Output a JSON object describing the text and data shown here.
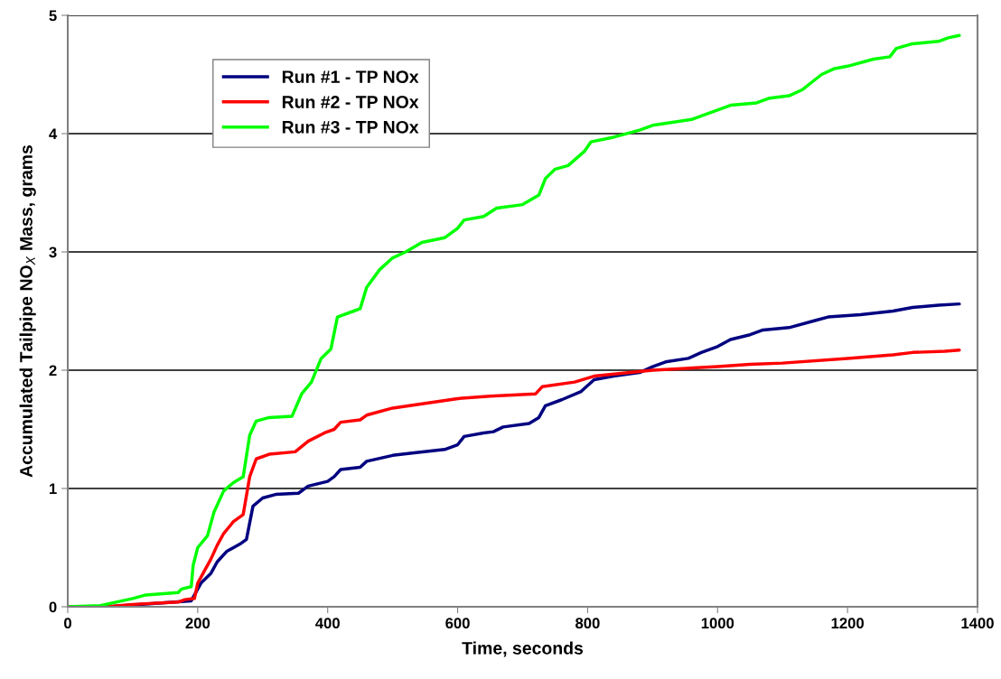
{
  "chart_data": {
    "type": "line",
    "xlabel": "Time, seconds",
    "ylabel": "Accumulated Tailpipe NO$_{X}$ Mass, grams",
    "xlim": [
      0,
      1400
    ],
    "xticks": [
      0,
      200,
      400,
      600,
      800,
      1000,
      1200,
      1400
    ],
    "ylim": [
      0,
      5
    ],
    "yticks": [
      0,
      1,
      2,
      3,
      4,
      5
    ],
    "grid": "y",
    "legend": "top left",
    "marker": "none",
    "line_style": "solid",
    "series": [
      {
        "name": "Run #1 - TP NOx",
        "color": "#000080",
        "x": [
          0,
          60,
          190,
          195,
          205,
          220,
          230,
          245,
          265,
          275,
          285,
          300,
          320,
          355,
          370,
          400,
          410,
          420,
          450,
          460,
          500,
          530,
          580,
          600,
          610,
          640,
          655,
          670,
          710,
          725,
          735,
          760,
          790,
          810,
          840,
          880,
          900,
          920,
          955,
          975,
          1000,
          1020,
          1050,
          1070,
          1110,
          1150,
          1170,
          1220,
          1270,
          1300,
          1340,
          1372
        ],
        "values": [
          0,
          0,
          0.05,
          0.1,
          0.2,
          0.28,
          0.38,
          0.47,
          0.53,
          0.57,
          0.85,
          0.92,
          0.95,
          0.96,
          1.02,
          1.06,
          1.1,
          1.16,
          1.18,
          1.23,
          1.28,
          1.3,
          1.33,
          1.37,
          1.44,
          1.47,
          1.48,
          1.52,
          1.55,
          1.6,
          1.7,
          1.75,
          1.82,
          1.92,
          1.95,
          1.98,
          2.03,
          2.07,
          2.1,
          2.15,
          2.2,
          2.26,
          2.3,
          2.34,
          2.36,
          2.42,
          2.45,
          2.47,
          2.5,
          2.53,
          2.55,
          2.56
        ]
      },
      {
        "name": "Run #2 - TP NOx",
        "color": "#ff0000",
        "x": [
          0,
          60,
          100,
          170,
          180,
          195,
          200,
          210,
          220,
          230,
          240,
          255,
          270,
          280,
          290,
          310,
          350,
          370,
          395,
          410,
          420,
          450,
          460,
          500,
          550,
          600,
          650,
          720,
          730,
          780,
          810,
          900,
          1000,
          1050,
          1100,
          1200,
          1270,
          1300,
          1350,
          1372
        ],
        "values": [
          0,
          0,
          0.02,
          0.04,
          0.06,
          0.07,
          0.2,
          0.3,
          0.4,
          0.52,
          0.62,
          0.72,
          0.78,
          1.1,
          1.25,
          1.29,
          1.31,
          1.4,
          1.47,
          1.5,
          1.56,
          1.58,
          1.62,
          1.68,
          1.72,
          1.76,
          1.78,
          1.8,
          1.86,
          1.9,
          1.95,
          2.0,
          2.03,
          2.05,
          2.06,
          2.1,
          2.13,
          2.15,
          2.16,
          2.17
        ]
      },
      {
        "name": "Run #3 - TP NOx",
        "color": "#00ff00",
        "x": [
          0,
          50,
          100,
          120,
          170,
          175,
          190,
          193,
          200,
          215,
          225,
          240,
          255,
          270,
          280,
          290,
          310,
          345,
          360,
          375,
          390,
          405,
          415,
          440,
          450,
          460,
          480,
          500,
          520,
          545,
          580,
          600,
          610,
          640,
          660,
          700,
          725,
          735,
          750,
          770,
          795,
          805,
          840,
          880,
          900,
          960,
          975,
          1000,
          1020,
          1060,
          1080,
          1110,
          1130,
          1160,
          1180,
          1200,
          1240,
          1265,
          1275,
          1300,
          1340,
          1355,
          1372
        ],
        "values": [
          0,
          0.01,
          0.07,
          0.1,
          0.12,
          0.15,
          0.17,
          0.35,
          0.5,
          0.6,
          0.8,
          0.98,
          1.05,
          1.1,
          1.45,
          1.57,
          1.6,
          1.61,
          1.8,
          1.9,
          2.1,
          2.18,
          2.45,
          2.5,
          2.52,
          2.7,
          2.85,
          2.95,
          3.0,
          3.08,
          3.12,
          3.2,
          3.27,
          3.3,
          3.37,
          3.4,
          3.48,
          3.62,
          3.7,
          3.73,
          3.85,
          3.93,
          3.97,
          4.03,
          4.07,
          4.12,
          4.15,
          4.2,
          4.24,
          4.26,
          4.3,
          4.32,
          4.37,
          4.5,
          4.55,
          4.57,
          4.63,
          4.65,
          4.72,
          4.76,
          4.78,
          4.81,
          4.83
        ]
      }
    ]
  }
}
